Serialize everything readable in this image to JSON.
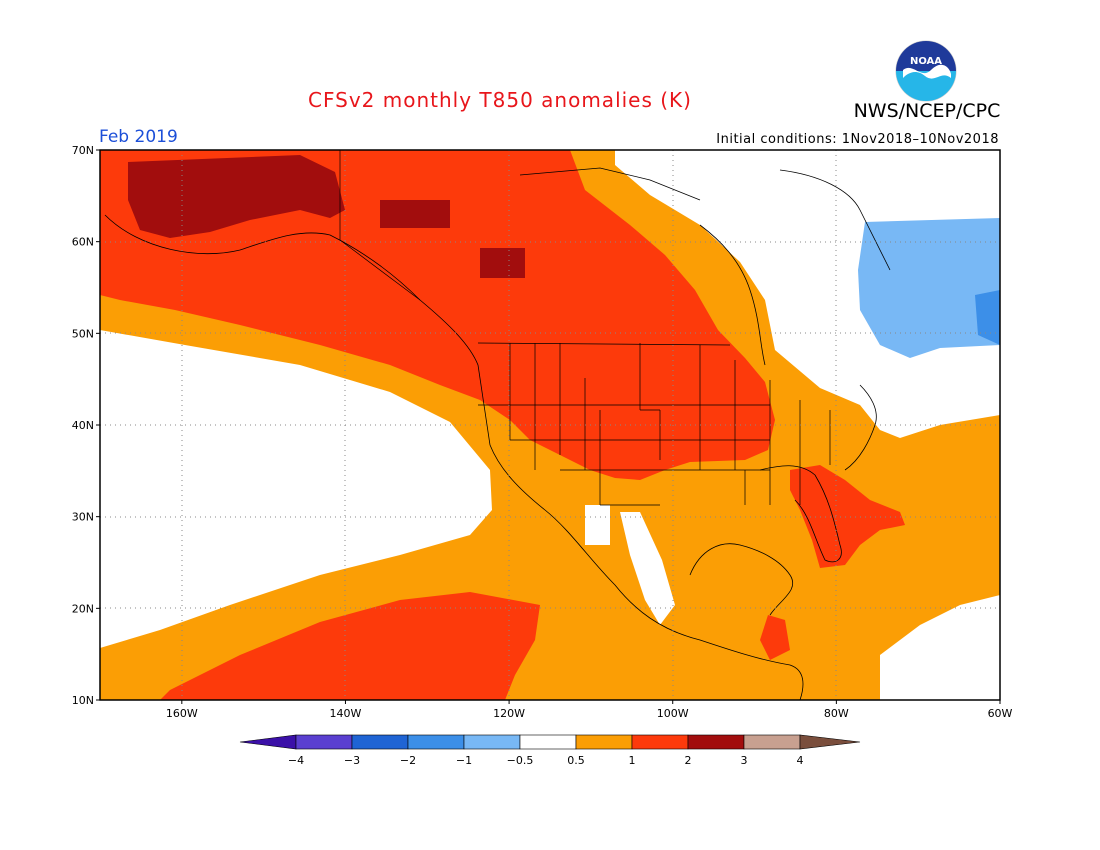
{
  "title": "CFSv2 monthly T850 anomalies (K)",
  "agency": "NWS/NCEP/CPC",
  "logo_text": "NOAA",
  "valid_month": "Feb 2019",
  "initial_conditions": "Initial conditions: 1Nov2018–10Nov2018",
  "map": {
    "projection": "cylindrical equidistant",
    "lon_range": [
      -170,
      -60
    ],
    "lat_range": [
      10,
      70
    ],
    "lat_labels": [
      "70N",
      "60N",
      "50N",
      "40N",
      "30N",
      "20N",
      "10N"
    ],
    "lon_labels": [
      "160W",
      "140W",
      "120W",
      "100W",
      "80W",
      "60W"
    ],
    "gridlines": "dotted"
  },
  "colorbar": {
    "labels": [
      "-4",
      "-3",
      "-2",
      "-1",
      "-0.5",
      "0.5",
      "1",
      "2",
      "3",
      "4"
    ],
    "colors": [
      "#3b10a8",
      "#5a3fd0",
      "#1f64d4",
      "#3c8fe8",
      "#78b8f5",
      "#ffffff",
      "#fb9e05",
      "#fd3a0b",
      "#a20d0d",
      "#c8a090",
      "#7a4e3c"
    ]
  },
  "anomaly_regions": [
    {
      "category": "1 to 2",
      "color": "#fd3a0b",
      "area": "Alaska, western Canada and central/northern US"
    },
    {
      "category": "2 to 3",
      "color": "#a20d0d",
      "area": "northern Alaska and Yukon"
    },
    {
      "category": "0.5 to 1",
      "color": "#fb9e05",
      "area": "eastern Pacific, Mexico, southern US, Gulf of Mexico, western Atlantic"
    },
    {
      "category": "-1 to -0.5",
      "color": "#78b8f5",
      "area": "Labrador and northern Quebec"
    },
    {
      "category": "-2 to -1",
      "color": "#3c8fe8",
      "area": "Labrador coast"
    },
    {
      "category": "1 to 2",
      "color": "#fd3a0b",
      "area": "Florida and southeastern US"
    },
    {
      "category": "1 to 2",
      "color": "#fd3a0b",
      "area": "subtropical eastern Pacific"
    }
  ]
}
